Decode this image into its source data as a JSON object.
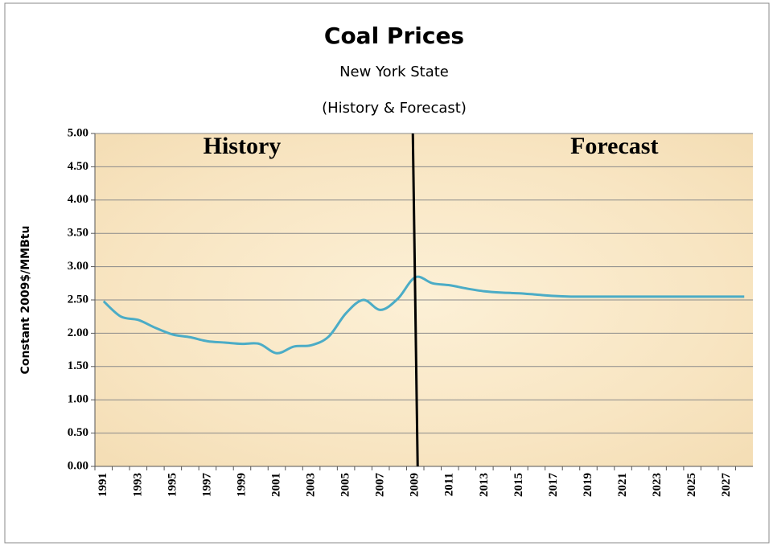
{
  "chart_data": {
    "type": "line",
    "title": "Coal Prices",
    "subtitle": "New York State",
    "subtitle2": "(History & Forecast)",
    "y_label": "Constant 2009$/MMBtu",
    "annotations": [
      "History",
      "Forecast"
    ],
    "categories": [
      "1991",
      null,
      "1993",
      null,
      "1995",
      null,
      "1997",
      null,
      "1999",
      null,
      "2001",
      null,
      "2003",
      null,
      "2005",
      null,
      "2007",
      null,
      "2009",
      null,
      "2011",
      null,
      "2013",
      null,
      "2015",
      null,
      "2017",
      null,
      "2019",
      null,
      "2021",
      null,
      "2023",
      null,
      "2025",
      null,
      "2027",
      null
    ],
    "series": [
      {
        "name": "Coal Prices",
        "color": "#4bacc6",
        "values": [
          2.48,
          2.25,
          2.2,
          2.08,
          1.98,
          1.94,
          1.88,
          1.86,
          1.84,
          1.84,
          1.7,
          1.8,
          1.82,
          1.95,
          2.3,
          2.5,
          2.35,
          2.52,
          2.84,
          2.75,
          2.72,
          2.67,
          2.63,
          2.61,
          2.6,
          2.58,
          2.56,
          2.55,
          2.55,
          2.55,
          2.55,
          2.55,
          2.55,
          2.55,
          2.55,
          2.55,
          2.55,
          2.55
        ]
      }
    ],
    "ylim": [
      0,
      5
    ],
    "yticks": [
      {
        "value": 0,
        "label": "0.00"
      },
      {
        "value": 0.5,
        "label": "0.50"
      },
      {
        "value": 1,
        "label": "1.00"
      },
      {
        "value": 1.5,
        "label": "1.50"
      },
      {
        "value": 2,
        "label": "2.00"
      },
      {
        "value": 2.5,
        "label": "2.50"
      },
      {
        "value": 3,
        "label": "3.00"
      },
      {
        "value": 3.5,
        "label": "3.50"
      },
      {
        "value": 4,
        "label": "4.00"
      },
      {
        "value": 4.5,
        "label": "4.50"
      },
      {
        "value": 5,
        "label": "5.00"
      }
    ],
    "grid": true
  }
}
